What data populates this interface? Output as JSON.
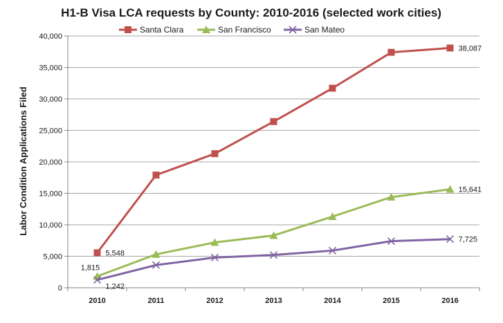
{
  "chart_data": {
    "type": "line",
    "title": "H1-B Visa LCA requests by County: 2010-2016 (selected work cities)",
    "xlabel": "",
    "ylabel": "Labor Condition Applications Filed",
    "categories": [
      "2010",
      "2011",
      "2012",
      "2013",
      "2014",
      "2015",
      "2016"
    ],
    "ylim": [
      0,
      40000
    ],
    "yticks": [
      0,
      5000,
      10000,
      15000,
      20000,
      25000,
      30000,
      35000,
      40000
    ],
    "ytick_labels": [
      "0",
      "5,000",
      "10,000",
      "15,000",
      "20,000",
      "25,000",
      "30,000",
      "35,000",
      "40,000"
    ],
    "grid": true,
    "legend_position": "top",
    "series": [
      {
        "name": "Santa Clara",
        "color": "#C0504D",
        "marker": "square",
        "values": [
          5548,
          17900,
          21300,
          26400,
          31700,
          37400,
          38087
        ],
        "labels": [
          {
            "index": 0,
            "text": "5,548"
          },
          {
            "index": 6,
            "text": "38,087"
          }
        ]
      },
      {
        "name": "San Francisco",
        "color": "#9BBB59",
        "marker": "triangle",
        "values": [
          1815,
          5300,
          7200,
          8300,
          11300,
          14400,
          15641
        ],
        "labels": [
          {
            "index": 0,
            "text": "1,815"
          },
          {
            "index": 6,
            "text": "15,641"
          }
        ]
      },
      {
        "name": "San Mateo",
        "color": "#8064A2",
        "marker": "x",
        "values": [
          1242,
          3600,
          4800,
          5200,
          5900,
          7400,
          7725
        ],
        "labels": [
          {
            "index": 0,
            "text": "1,242"
          },
          {
            "index": 6,
            "text": "7,725"
          }
        ]
      }
    ]
  }
}
